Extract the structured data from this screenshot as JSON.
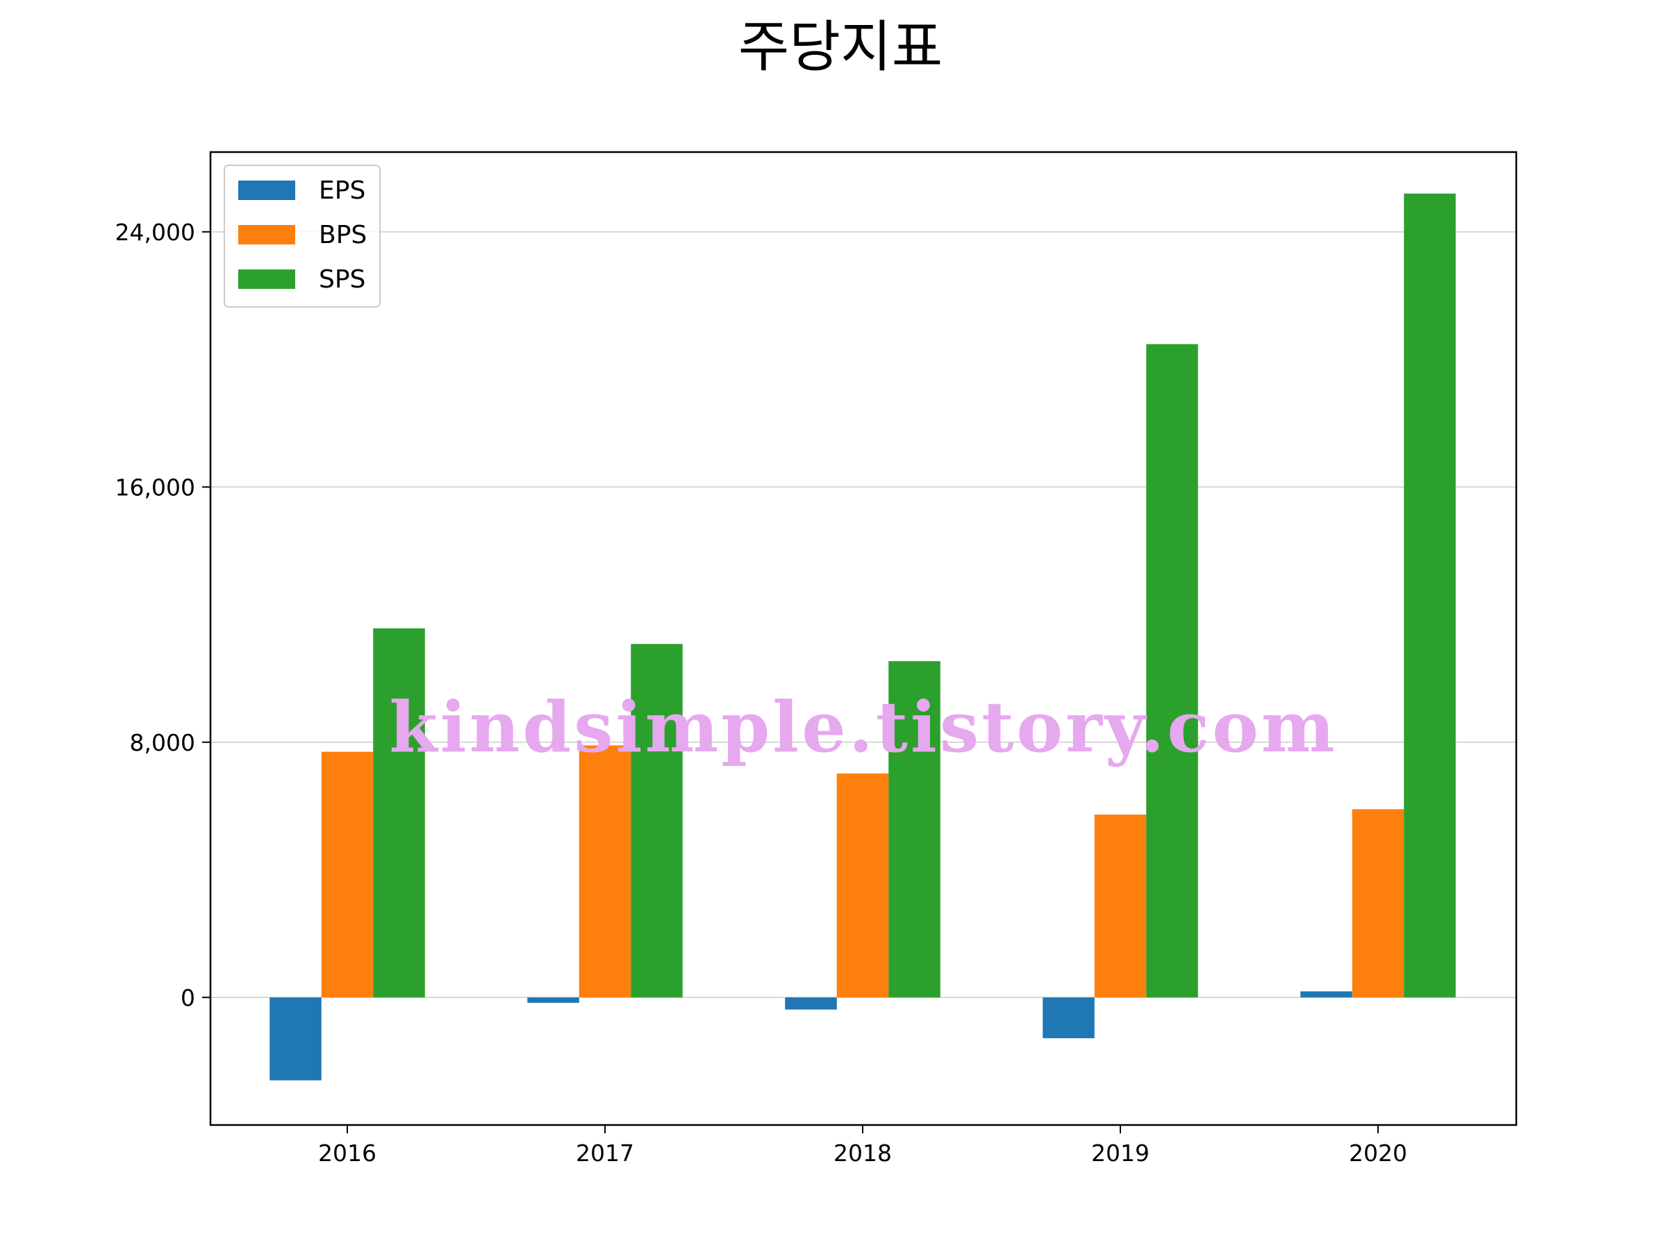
{
  "chart_data": {
    "type": "bar",
    "title": "주당지표",
    "xlabel": "",
    "ylabel": "",
    "categories": [
      "2016",
      "2017",
      "2018",
      "2019",
      "2020"
    ],
    "series": [
      {
        "name": "EPS",
        "color": "#1f77b4",
        "values": [
          -2600,
          -170,
          -380,
          -1280,
          190
        ]
      },
      {
        "name": "BPS",
        "color": "#ff7f0e",
        "values": [
          7700,
          7900,
          7020,
          5730,
          5900
        ]
      },
      {
        "name": "SPS",
        "color": "#2ca02c",
        "values": [
          11570,
          11080,
          10540,
          20480,
          25200
        ]
      }
    ],
    "ylim": [
      -4000,
      26500
    ],
    "yticks": [
      0,
      8000,
      16000,
      24000
    ],
    "ytick_labels": [
      "0",
      "8,000",
      "16,000",
      "24,000"
    ],
    "grid": "y",
    "legend": "top-left"
  },
  "watermark": "kindsimple.tistory.com"
}
